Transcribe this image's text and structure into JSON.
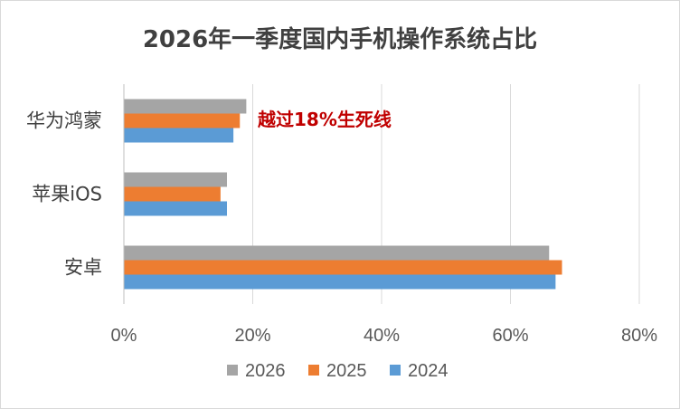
{
  "chart_data": {
    "type": "bar",
    "orientation": "horizontal",
    "title": "2026年一季度国内手机操作系统占比",
    "categories": [
      "华为鸿蒙",
      "苹果iOS",
      "安卓"
    ],
    "series": [
      {
        "name": "2026",
        "color": "#a5a5a5",
        "values": [
          19,
          16,
          66
        ]
      },
      {
        "name": "2025",
        "color": "#ed7d31",
        "values": [
          18,
          15,
          68
        ]
      },
      {
        "name": "2024",
        "color": "#5b9bd5",
        "values": [
          17,
          16,
          67
        ]
      }
    ],
    "xlim": [
      0,
      80
    ],
    "xticks": [
      "0%",
      "20%",
      "40%",
      "60%",
      "80%"
    ],
    "grid": true,
    "legend_position": "bottom",
    "annotation": {
      "text": "越过18%生死线",
      "color": "#c00000"
    }
  }
}
